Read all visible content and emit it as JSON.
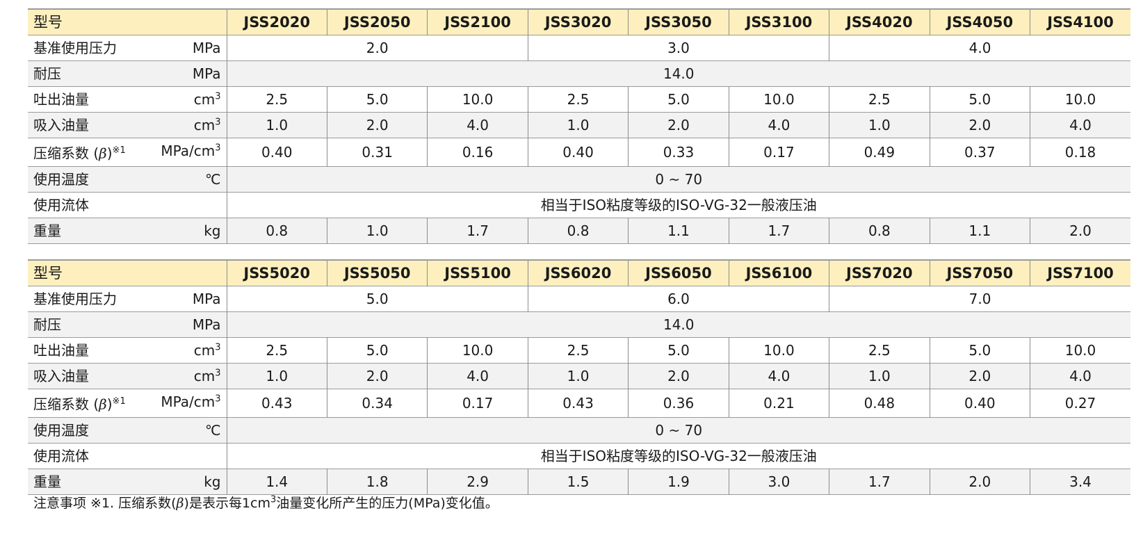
{
  "tables": [
    {
      "header_label": "型号",
      "models": [
        "JSS2020",
        "JSS2050",
        "JSS2100",
        "JSS3020",
        "JSS3050",
        "JSS3100",
        "JSS4020",
        "JSS4050",
        "JSS4100"
      ],
      "pressure": {
        "label": "基准使用压力",
        "unit": "MPa",
        "values": [
          "2.0",
          "3.0",
          "4.0"
        ]
      },
      "proof": {
        "label": "耐压",
        "unit": "MPa",
        "value": "14.0"
      },
      "discharge": {
        "label": "吐出油量",
        "unit": "cm",
        "unit_sup": "3",
        "values": [
          "2.5",
          "5.0",
          "10.0",
          "2.5",
          "5.0",
          "10.0",
          "2.5",
          "5.0",
          "10.0"
        ]
      },
      "suction": {
        "label": "吸入油量",
        "unit": "cm",
        "unit_sup": "3",
        "values": [
          "1.0",
          "2.0",
          "4.0",
          "1.0",
          "2.0",
          "4.0",
          "1.0",
          "2.0",
          "4.0"
        ]
      },
      "compress": {
        "label_pre": "压缩系数 (",
        "beta": "β",
        "label_post": ")",
        "mark": "※1",
        "unit": "MPa/cm",
        "unit_sup": "3",
        "values": [
          "0.40",
          "0.31",
          "0.16",
          "0.40",
          "0.33",
          "0.17",
          "0.49",
          "0.37",
          "0.18"
        ]
      },
      "temp": {
        "label": "使用温度",
        "unit": "℃",
        "value": "0 ~ 70"
      },
      "fluid": {
        "label": "使用流体",
        "unit": "",
        "value": "相当于ISO粘度等级的ISO-VG-32一般液压油"
      },
      "weight": {
        "label": "重量",
        "unit": "kg",
        "values": [
          "0.8",
          "1.0",
          "1.7",
          "0.8",
          "1.1",
          "1.7",
          "0.8",
          "1.1",
          "2.0"
        ]
      }
    },
    {
      "header_label": "型号",
      "models": [
        "JSS5020",
        "JSS5050",
        "JSS5100",
        "JSS6020",
        "JSS6050",
        "JSS6100",
        "JSS7020",
        "JSS7050",
        "JSS7100"
      ],
      "pressure": {
        "label": "基准使用压力",
        "unit": "MPa",
        "values": [
          "5.0",
          "6.0",
          "7.0"
        ]
      },
      "proof": {
        "label": "耐压",
        "unit": "MPa",
        "value": "14.0"
      },
      "discharge": {
        "label": "吐出油量",
        "unit": "cm",
        "unit_sup": "3",
        "values": [
          "2.5",
          "5.0",
          "10.0",
          "2.5",
          "5.0",
          "10.0",
          "2.5",
          "5.0",
          "10.0"
        ]
      },
      "suction": {
        "label": "吸入油量",
        "unit": "cm",
        "unit_sup": "3",
        "values": [
          "1.0",
          "2.0",
          "4.0",
          "1.0",
          "2.0",
          "4.0",
          "1.0",
          "2.0",
          "4.0"
        ]
      },
      "compress": {
        "label_pre": "压缩系数 (",
        "beta": "β",
        "label_post": ")",
        "mark": "※1",
        "unit": "MPa/cm",
        "unit_sup": "3",
        "values": [
          "0.43",
          "0.34",
          "0.17",
          "0.43",
          "0.36",
          "0.21",
          "0.48",
          "0.40",
          "0.27"
        ]
      },
      "temp": {
        "label": "使用温度",
        "unit": "℃",
        "value": "0 ~ 70"
      },
      "fluid": {
        "label": "使用流体",
        "unit": "",
        "value": "相当于ISO粘度等级的ISO-VG-32一般液压油"
      },
      "weight": {
        "label": "重量",
        "unit": "kg",
        "values": [
          "1.4",
          "1.8",
          "2.9",
          "1.5",
          "1.9",
          "3.0",
          "1.7",
          "2.0",
          "3.4"
        ]
      }
    }
  ],
  "note": {
    "pre": "注意事项 ※1. 压缩系数(",
    "beta": "β",
    "mid": ")是表示每1cm",
    "sup": "3",
    "post": "油量变化所产生的压力(MPa)变化值。"
  },
  "colors": {
    "header_bg": "#fdf0be",
    "alt_row_bg": "#f2f2f2"
  }
}
